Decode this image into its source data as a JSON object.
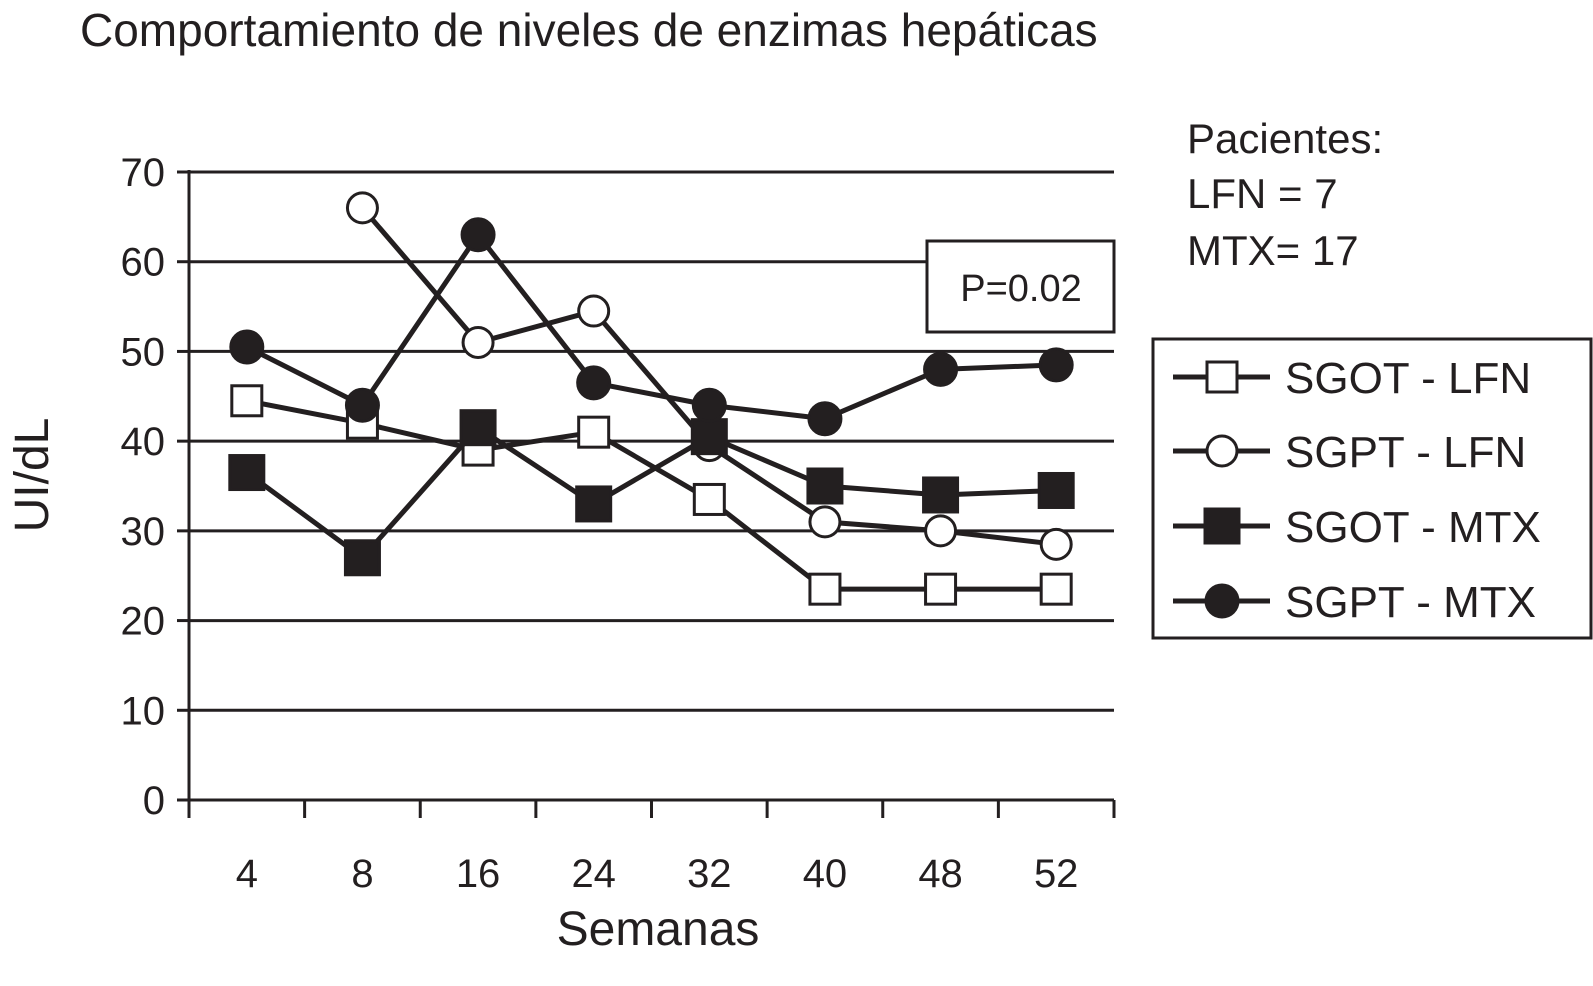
{
  "chart_data": {
    "type": "line",
    "title": "Comportamiento de niveles de enzimas hepáticas",
    "xlabel": "Semanas",
    "ylabel": "UI/dL",
    "categories": [
      "4",
      "8",
      "16",
      "24",
      "32",
      "40",
      "48",
      "52"
    ],
    "ylim": [
      0,
      70
    ],
    "yticks": [
      0,
      10,
      20,
      30,
      40,
      50,
      60,
      70
    ],
    "grid": true,
    "legend_position": "right",
    "series": [
      {
        "name": "SGOT - LFN",
        "marker": "square-open",
        "values": [
          44.5,
          42,
          39,
          41,
          33.5,
          23.5,
          23.5,
          23.5
        ]
      },
      {
        "name": "SGPT - LFN",
        "marker": "circle-open",
        "values": [
          null,
          66,
          51,
          54.5,
          39.5,
          31,
          30,
          28.5
        ]
      },
      {
        "name": "SGOT - MTX",
        "marker": "square-filled",
        "values": [
          36.5,
          27,
          41.5,
          33,
          40.5,
          35,
          34,
          34.5
        ]
      },
      {
        "name": "SGPT - MTX",
        "marker": "circle-filled",
        "values": [
          50.5,
          44,
          63,
          46.5,
          44,
          42.5,
          48,
          48.5
        ]
      }
    ],
    "annotations": {
      "p_value": "P=0.02",
      "patients_heading": "Pacientes:",
      "patients_lfn": "LFN = 7",
      "patients_mtx": "MTX= 17"
    },
    "colors": {
      "ink": "#231f20",
      "background": "#ffffff"
    }
  }
}
